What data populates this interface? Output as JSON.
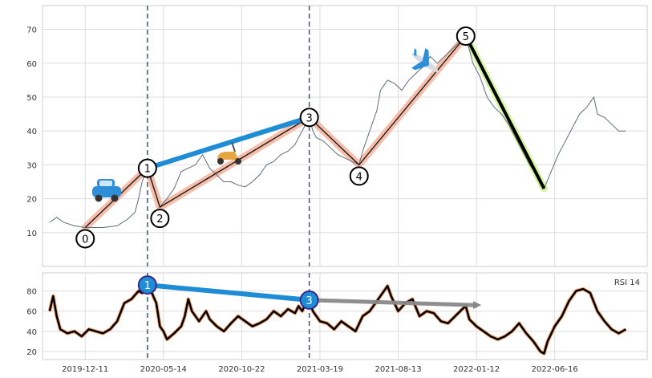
{
  "chart_data": [
    {
      "type": "line",
      "panel": "price",
      "title": "",
      "xlabel": "",
      "ylabel": "",
      "ylim": [
        0,
        77
      ],
      "yticks": [
        10,
        20,
        30,
        40,
        50,
        60,
        70
      ],
      "grid": true,
      "series": [
        {
          "name": "",
          "role": "price",
          "color": "#5f6b7a",
          "values": [
            [
              0,
              13
            ],
            [
              4,
              14.5
            ],
            [
              8,
              13
            ],
            [
              14,
              12
            ],
            [
              20,
              11.5
            ],
            [
              30,
              11.5
            ],
            [
              38,
              12
            ],
            [
              44,
              14
            ],
            [
              48,
              16
            ],
            [
              50,
              20
            ],
            [
              52,
              25
            ],
            [
              55,
              29
            ],
            [
              57,
              26
            ],
            [
              60,
              21
            ],
            [
              62,
              17.5
            ],
            [
              66,
              20
            ],
            [
              70,
              23
            ],
            [
              74,
              28
            ],
            [
              78,
              29
            ],
            [
              82,
              30
            ],
            [
              86,
              33
            ],
            [
              90,
              29
            ],
            [
              94,
              27
            ],
            [
              98,
              25
            ],
            [
              102,
              25
            ],
            [
              106,
              24
            ],
            [
              110,
              23.5
            ],
            [
              114,
              25
            ],
            [
              118,
              27
            ],
            [
              122,
              30
            ],
            [
              126,
              31
            ],
            [
              130,
              33
            ],
            [
              134,
              34
            ],
            [
              138,
              36
            ],
            [
              140,
              38
            ],
            [
              142,
              40
            ],
            [
              144,
              42
            ],
            [
              146,
              44
            ],
            [
              148,
              40
            ],
            [
              150,
              38
            ],
            [
              154,
              37
            ],
            [
              158,
              35
            ],
            [
              162,
              33
            ],
            [
              166,
              32
            ],
            [
              170,
              31
            ],
            [
              174,
              30
            ],
            [
              176,
              34
            ],
            [
              180,
              40
            ],
            [
              184,
              46
            ],
            [
              186,
              52
            ],
            [
              190,
              55
            ],
            [
              194,
              54
            ],
            [
              198,
              52
            ],
            [
              202,
              55
            ],
            [
              206,
              57
            ],
            [
              210,
              59
            ],
            [
              214,
              62
            ],
            [
              218,
              60
            ],
            [
              222,
              62
            ],
            [
              226,
              64
            ],
            [
              230,
              66
            ],
            [
              234,
              68
            ],
            [
              236,
              64
            ],
            [
              238,
              60
            ],
            [
              242,
              56
            ],
            [
              246,
              50
            ],
            [
              250,
              47
            ],
            [
              254,
              45
            ],
            [
              258,
              42
            ],
            [
              262,
              38
            ],
            [
              266,
              34
            ],
            [
              270,
              30
            ],
            [
              274,
              27
            ],
            [
              278,
              23
            ],
            [
              282,
              28
            ],
            [
              286,
              33
            ],
            [
              290,
              37
            ],
            [
              294,
              41
            ],
            [
              298,
              45
            ],
            [
              302,
              47
            ],
            [
              306,
              50
            ],
            [
              308,
              45
            ],
            [
              312,
              44
            ],
            [
              316,
              42
            ],
            [
              320,
              40
            ],
            [
              324,
              40
            ]
          ]
        }
      ],
      "waves": {
        "labels": [
          "0",
          "1",
          "2",
          "3",
          "4",
          "5"
        ],
        "points": [
          [
            20,
            11.5
          ],
          [
            55,
            29
          ],
          [
            62,
            17.5
          ],
          [
            146,
            44
          ],
          [
            174,
            30
          ],
          [
            234,
            68
          ]
        ]
      },
      "c_wave": {
        "from": [
          234,
          68
        ],
        "to": [
          278,
          23
        ]
      },
      "divergence_line": {
        "from": [
          55,
          29
        ],
        "to": [
          146,
          44
        ]
      },
      "vlines": [
        55,
        146
      ],
      "icons": [
        "car-icon",
        "scooter-icon",
        "airplane-icon"
      ]
    },
    {
      "type": "line",
      "panel": "rsi",
      "title": "RSI 14",
      "ylim": [
        12,
        98
      ],
      "yticks": [
        20,
        40,
        60,
        80
      ],
      "xticklabels": [
        "2019-12-11",
        "2020-05-14",
        "2020-10-22",
        "2021-03-19",
        "2021-08-13",
        "2022-01-12",
        "2022-06-16"
      ],
      "xtickpos": [
        20,
        64,
        108,
        152,
        196,
        240,
        284
      ],
      "xlim": [
        -4,
        336
      ],
      "series": [
        {
          "name": "RSI 14",
          "role": "rsi",
          "values": [
            [
              0,
              60
            ],
            [
              2,
              75
            ],
            [
              4,
              55
            ],
            [
              6,
              42
            ],
            [
              10,
              38
            ],
            [
              14,
              40
            ],
            [
              18,
              35
            ],
            [
              22,
              42
            ],
            [
              26,
              40
            ],
            [
              30,
              38
            ],
            [
              34,
              42
            ],
            [
              38,
              50
            ],
            [
              42,
              68
            ],
            [
              46,
              72
            ],
            [
              50,
              80
            ],
            [
              52,
              78
            ],
            [
              55,
              85
            ],
            [
              57,
              80
            ],
            [
              60,
              68
            ],
            [
              62,
              45
            ],
            [
              64,
              40
            ],
            [
              66,
              32
            ],
            [
              70,
              38
            ],
            [
              74,
              45
            ],
            [
              76,
              55
            ],
            [
              78,
              72
            ],
            [
              80,
              60
            ],
            [
              84,
              50
            ],
            [
              88,
              60
            ],
            [
              90,
              52
            ],
            [
              94,
              45
            ],
            [
              98,
              40
            ],
            [
              102,
              48
            ],
            [
              106,
              55
            ],
            [
              110,
              50
            ],
            [
              114,
              45
            ],
            [
              118,
              48
            ],
            [
              122,
              52
            ],
            [
              126,
              60
            ],
            [
              130,
              55
            ],
            [
              134,
              62
            ],
            [
              138,
              58
            ],
            [
              140,
              65
            ],
            [
              142,
              60
            ],
            [
              144,
              68
            ],
            [
              146,
              72
            ],
            [
              148,
              60
            ],
            [
              152,
              50
            ],
            [
              156,
              48
            ],
            [
              160,
              42
            ],
            [
              164,
              50
            ],
            [
              168,
              45
            ],
            [
              172,
              40
            ],
            [
              176,
              55
            ],
            [
              180,
              60
            ],
            [
              184,
              70
            ],
            [
              188,
              80
            ],
            [
              190,
              85
            ],
            [
              192,
              75
            ],
            [
              196,
              60
            ],
            [
              200,
              68
            ],
            [
              204,
              72
            ],
            [
              208,
              55
            ],
            [
              212,
              60
            ],
            [
              216,
              58
            ],
            [
              220,
              50
            ],
            [
              224,
              48
            ],
            [
              228,
              55
            ],
            [
              232,
              62
            ],
            [
              234,
              65
            ],
            [
              236,
              52
            ],
            [
              240,
              45
            ],
            [
              244,
              40
            ],
            [
              248,
              35
            ],
            [
              252,
              32
            ],
            [
              256,
              35
            ],
            [
              260,
              40
            ],
            [
              264,
              48
            ],
            [
              268,
              38
            ],
            [
              272,
              30
            ],
            [
              276,
              20
            ],
            [
              278,
              18
            ],
            [
              280,
              30
            ],
            [
              284,
              45
            ],
            [
              288,
              55
            ],
            [
              292,
              70
            ],
            [
              296,
              80
            ],
            [
              300,
              82
            ],
            [
              304,
              78
            ],
            [
              308,
              60
            ],
            [
              312,
              50
            ],
            [
              316,
              42
            ],
            [
              320,
              38
            ],
            [
              324,
              42
            ]
          ]
        }
      ],
      "markers": {
        "labels": [
          "1",
          "3"
        ],
        "points": [
          [
            55,
            86
          ],
          [
            146,
            71
          ]
        ]
      },
      "divergence_line": {
        "from": [
          55,
          86
        ],
        "to": [
          146,
          71
        ]
      },
      "extension_line": {
        "from": [
          146,
          71
        ],
        "to": [
          240,
          66
        ]
      }
    }
  ]
}
